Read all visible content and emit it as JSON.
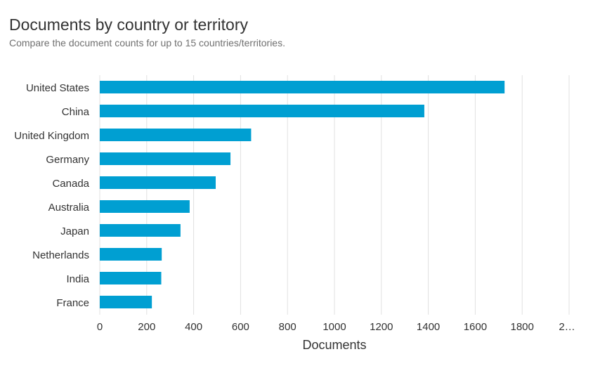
{
  "header": {
    "title": "Documents by country or territory",
    "subtitle": "Compare the document counts for up to 15 countries/territories."
  },
  "chart_data": {
    "type": "bar",
    "orientation": "horizontal",
    "categories": [
      "United States",
      "China",
      "United Kingdom",
      "Germany",
      "Canada",
      "Australia",
      "Japan",
      "Netherlands",
      "India",
      "France"
    ],
    "values": [
      1725,
      1383,
      645,
      557,
      494,
      383,
      344,
      264,
      262,
      222
    ],
    "xlabel": "Documents",
    "ylabel": "",
    "xlim": [
      0,
      2000
    ],
    "x_ticks": [
      0,
      200,
      400,
      600,
      800,
      1000,
      1200,
      1400,
      1600,
      1800
    ],
    "x_tick_labels": [
      "0",
      "200",
      "400",
      "600",
      "800",
      "1000",
      "1200",
      "1400",
      "1600",
      "1800"
    ],
    "truncated_last_tick_label": "2…",
    "grid": true,
    "bar_color": "#009fd2",
    "grid_color": "#e0e0e0"
  }
}
